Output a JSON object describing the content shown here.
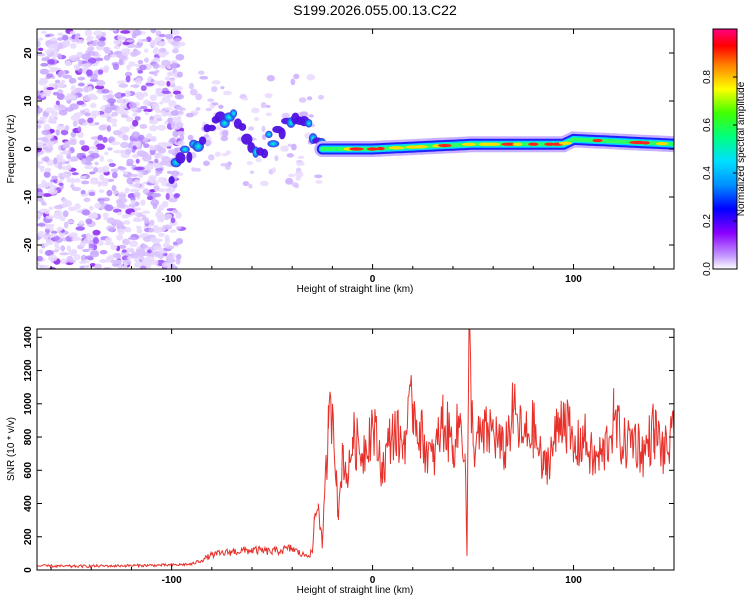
{
  "title": "S199.2026.055.00.13.C22",
  "chart_data": [
    {
      "type": "heatmap",
      "name": "spectrogram",
      "xlabel": "Height of straight line (km)",
      "ylabel": "Frequency (Hz)",
      "xlim": [
        -167,
        150
      ],
      "ylim": [
        -25,
        25
      ],
      "xticks": [
        -100,
        0,
        100
      ],
      "yticks": [
        -20,
        -10,
        0,
        10,
        20
      ],
      "colorbar": {
        "label": "Normalized spectral amplitude",
        "range": [
          0,
          1
        ],
        "ticks": [
          0.0,
          0.2,
          0.4,
          0.6,
          0.8
        ]
      },
      "ridge": {
        "description_points_x": [
          -100,
          -92,
          -80,
          -70,
          -60,
          -50,
          -40,
          -35,
          -30,
          -25,
          -20,
          0,
          50,
          95,
          100,
          150
        ],
        "description_points_freq": [
          -5,
          0,
          4,
          8,
          -2,
          2,
          5,
          7,
          4,
          0,
          0,
          0,
          1,
          1,
          2,
          1
        ]
      }
    },
    {
      "type": "line",
      "name": "snr",
      "xlabel": "Height of straight line (km)",
      "ylabel": "SNR (10 * v/v)",
      "xlim": [
        -167,
        150
      ],
      "ylim": [
        0,
        1450
      ],
      "xticks": [
        -100,
        0,
        100
      ],
      "yticks": [
        0,
        200,
        400,
        600,
        800,
        1000,
        1200,
        1400
      ],
      "color": "#e8302a",
      "series": [
        {
          "name": "SNR",
          "x": [
            -167,
            -150,
            -130,
            -110,
            -100,
            -90,
            -85,
            -80,
            -70,
            -60,
            -50,
            -40,
            -35,
            -30,
            -29,
            -27,
            -25,
            -22,
            -20,
            -18,
            -17,
            -15,
            -12,
            -10,
            -5,
            0,
            5,
            10,
            15,
            20,
            25,
            30,
            35,
            40,
            44,
            46,
            47,
            48,
            50,
            55,
            60,
            65,
            70,
            75,
            80,
            85,
            90,
            95,
            100,
            105,
            110,
            115,
            120,
            125,
            130,
            135,
            140,
            145,
            150
          ],
          "y": [
            25,
            22,
            25,
            28,
            30,
            35,
            60,
            90,
            110,
            120,
            110,
            130,
            90,
            100,
            300,
            400,
            150,
            850,
            1000,
            600,
            300,
            700,
            550,
            800,
            700,
            880,
            600,
            850,
            750,
            1000,
            780,
            650,
            900,
            750,
            900,
            700,
            90,
            1450,
            750,
            800,
            850,
            700,
            950,
            780,
            850,
            600,
            750,
            980,
            700,
            800,
            650,
            700,
            900,
            750,
            800,
            700,
            850,
            700,
            800
          ]
        }
      ]
    }
  ]
}
